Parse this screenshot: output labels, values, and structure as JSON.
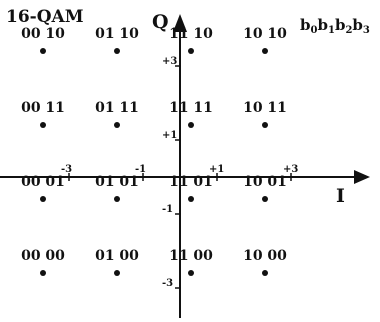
{
  "title": "16-QAM",
  "bit_legend": {
    "b0": "b",
    "s0": "0",
    "b1": "b",
    "s1": "1",
    "b2": "b",
    "s2": "2",
    "b3": "b",
    "s3": "3"
  },
  "axes": {
    "x_label": "I",
    "y_label": "Q"
  },
  "x_ticks": [
    {
      "value": -3,
      "label": "-3"
    },
    {
      "value": -1,
      "label": "-1"
    },
    {
      "value": 1,
      "label": "+1"
    },
    {
      "value": 3,
      "label": "+3"
    }
  ],
  "y_ticks": [
    {
      "value": 3,
      "label": "+3"
    },
    {
      "value": 1,
      "label": "+1"
    },
    {
      "value": -1,
      "label": "-1"
    },
    {
      "value": -3,
      "label": "-3"
    }
  ],
  "points": [
    {
      "i": -3,
      "q": 3,
      "label": "00 10"
    },
    {
      "i": -1,
      "q": 3,
      "label": "01 10"
    },
    {
      "i": 1,
      "q": 3,
      "label": "11 10"
    },
    {
      "i": 3,
      "q": 3,
      "label": "10 10"
    },
    {
      "i": -3,
      "q": 1,
      "label": "00 11"
    },
    {
      "i": -1,
      "q": 1,
      "label": "01 11"
    },
    {
      "i": 1,
      "q": 1,
      "label": "11 11"
    },
    {
      "i": 3,
      "q": 1,
      "label": "10 11"
    },
    {
      "i": -3,
      "q": -1,
      "label": "00 01"
    },
    {
      "i": -1,
      "q": -1,
      "label": "01 01"
    },
    {
      "i": 1,
      "q": -1,
      "label": "11 01"
    },
    {
      "i": 3,
      "q": -1,
      "label": "10 01"
    },
    {
      "i": -3,
      "q": -3,
      "label": "00 00"
    },
    {
      "i": -1,
      "q": -3,
      "label": "01 00"
    },
    {
      "i": 1,
      "q": -3,
      "label": "11 00"
    },
    {
      "i": 3,
      "q": -3,
      "label": "10 00"
    }
  ]
}
